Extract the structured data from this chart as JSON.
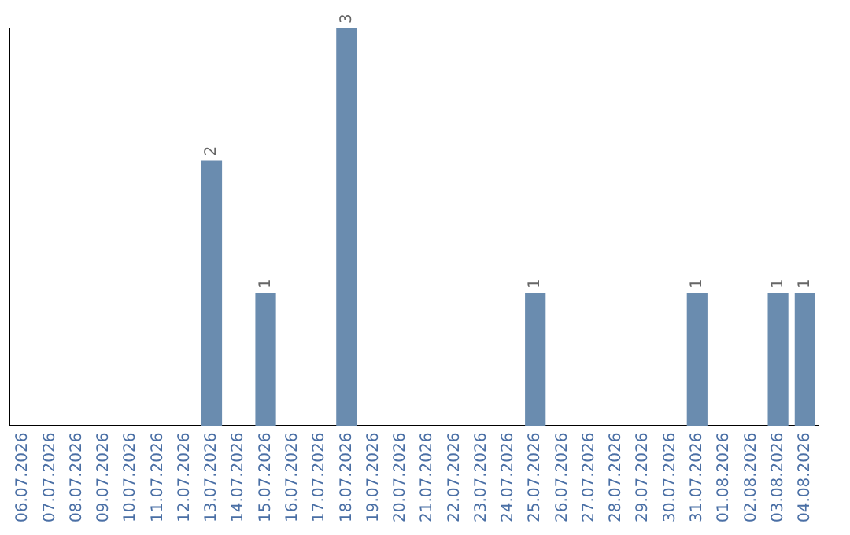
{
  "chart_data": {
    "type": "bar",
    "categories": [
      "06.07.2026",
      "07.07.2026",
      "08.07.2026",
      "09.07.2026",
      "10.07.2026",
      "11.07.2026",
      "12.07.2026",
      "13.07.2026",
      "14.07.2026",
      "15.07.2026",
      "16.07.2026",
      "17.07.2026",
      "18.07.2026",
      "19.07.2026",
      "20.07.2026",
      "21.07.2026",
      "22.07.2026",
      "23.07.2026",
      "24.07.2026",
      "25.07.2026",
      "26.07.2026",
      "27.07.2026",
      "28.07.2026",
      "29.07.2026",
      "30.07.2026",
      "31.07.2026",
      "01.08.2026",
      "02.08.2026",
      "03.08.2026",
      "04.08.2026"
    ],
    "values": [
      0,
      0,
      0,
      0,
      0,
      0,
      0,
      2,
      0,
      1,
      0,
      0,
      3,
      0,
      0,
      0,
      0,
      0,
      0,
      1,
      0,
      0,
      0,
      0,
      0,
      1,
      0,
      0,
      1,
      1
    ],
    "value_labels": [
      null,
      null,
      null,
      null,
      null,
      null,
      null,
      "2",
      null,
      "1",
      null,
      null,
      "3",
      null,
      null,
      null,
      null,
      null,
      null,
      "1",
      null,
      null,
      null,
      null,
      null,
      "1",
      null,
      null,
      "1",
      "1"
    ],
    "color": "#6a8caf",
    "grid": false,
    "legend": false,
    "tick_labels": "x"
  }
}
